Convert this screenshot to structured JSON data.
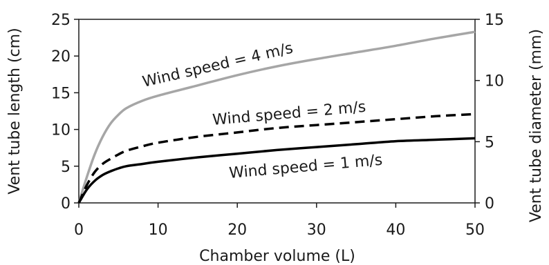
{
  "chart_data": {
    "type": "line",
    "xlabel": "Chamber volume (L)",
    "ylabel": "Vent tube length (cm)",
    "y2label": "Vent tube diameter (mm)",
    "xlim": [
      0,
      50
    ],
    "ylim": [
      0,
      25
    ],
    "y2lim": [
      0,
      15
    ],
    "xticks": [
      "0",
      "10",
      "20",
      "30",
      "40",
      "50"
    ],
    "yticks": [
      "0",
      "5",
      "10",
      "15",
      "20",
      "25"
    ],
    "y2ticks": [
      "0",
      "5",
      "10",
      "15"
    ],
    "grid": false,
    "legend": "none",
    "x": [
      0,
      1,
      2,
      3,
      4,
      5,
      6,
      8,
      10,
      15,
      20,
      25,
      30,
      35,
      40,
      45,
      50
    ],
    "series": [
      {
        "name": "Wind speed = 4 m/s",
        "color": "#a6a6a6",
        "style": "solid",
        "values": [
          0,
          3.5,
          6.6,
          9.0,
          10.8,
          12.0,
          12.9,
          13.9,
          14.6,
          16.0,
          17.4,
          18.6,
          19.6,
          20.5,
          21.4,
          22.4,
          23.3
        ]
      },
      {
        "name": "Wind speed = 2 m/s",
        "color": "#000000",
        "style": "dashed",
        "values": [
          0,
          2.4,
          4.2,
          5.3,
          6.0,
          6.6,
          7.1,
          7.7,
          8.2,
          9.0,
          9.6,
          10.2,
          10.6,
          11.0,
          11.4,
          11.8,
          12.1
        ]
      },
      {
        "name": "Wind speed = 1 m/s",
        "color": "#000000",
        "style": "solid",
        "values": [
          0,
          1.8,
          3.0,
          3.8,
          4.3,
          4.7,
          5.0,
          5.3,
          5.6,
          6.2,
          6.7,
          7.2,
          7.6,
          8.0,
          8.4,
          8.6,
          8.8
        ]
      }
    ],
    "annotations": [
      "Wind speed = 4 m/s",
      "Wind speed = 2 m/s",
      "Wind speed = 1 m/s"
    ]
  }
}
